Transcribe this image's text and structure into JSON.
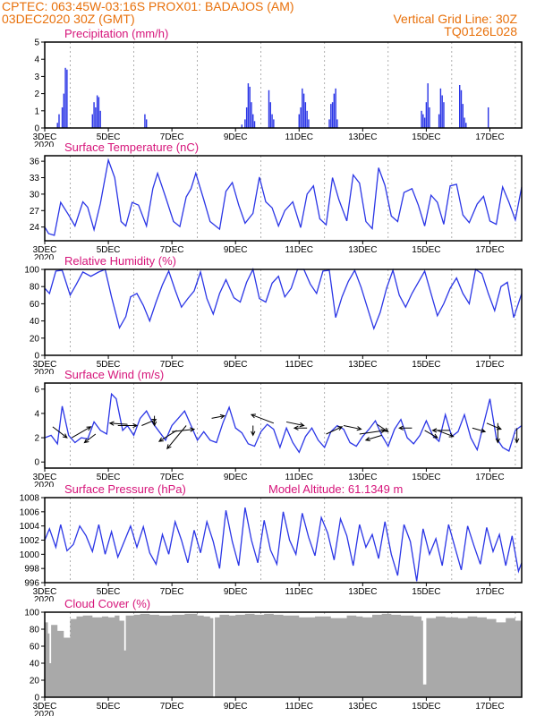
{
  "header": {
    "line1": "CPTEC:   063:45W-03:16S   PROX01: BADAJOS (AM)",
    "line2_left": "03DEC2020 30Z (GMT)",
    "line2_right": "Vertical Grid Line: 30Z",
    "line3_right": "TQ0126L028"
  },
  "x_axis": {
    "tick_labels": [
      "3DEC",
      "5DEC",
      "7DEC",
      "9DEC",
      "11DEC",
      "13DEC",
      "15DEC",
      "17DEC"
    ],
    "start_label_extra": "2020"
  },
  "colors": {
    "series": "#2b36e6",
    "title": "#d6147a",
    "header": "#e8700a",
    "cloud": "#a9a9a9"
  },
  "chart_data": [
    {
      "type": "bar",
      "title": "Precipitation (mm/h)",
      "ylim": [
        0,
        5
      ],
      "yticks": [
        0,
        1,
        2,
        3,
        4,
        5
      ],
      "xlim": [
        0,
        15
      ],
      "x": [
        0.4,
        0.45,
        0.55,
        0.6,
        0.65,
        0.7,
        1.5,
        1.55,
        1.6,
        1.65,
        1.7,
        1.75,
        3.15,
        3.2,
        6.2,
        6.3,
        6.35,
        6.4,
        6.45,
        6.5,
        6.55,
        6.6,
        7.05,
        7.1,
        7.15,
        7.2,
        8.0,
        8.05,
        8.1,
        8.15,
        8.2,
        8.25,
        8.3,
        8.95,
        9.0,
        9.05,
        9.1,
        9.15,
        9.2,
        11.85,
        11.9,
        11.95,
        12.0,
        12.05,
        12.1,
        12.4,
        12.45,
        12.5,
        12.55,
        13.05,
        13.1,
        13.15,
        13.2,
        13.25,
        13.95
      ],
      "values": [
        0.3,
        0.8,
        1.2,
        2.0,
        3.5,
        3.4,
        0.8,
        1.5,
        1.2,
        1.9,
        1.8,
        1.0,
        0.8,
        0.5,
        0.2,
        0.5,
        1.2,
        2.6,
        2.4,
        1.5,
        0.8,
        0.4,
        2.2,
        1.5,
        0.8,
        0.5,
        0.8,
        1.2,
        2.3,
        2.0,
        1.5,
        1.0,
        0.5,
        0.5,
        1.4,
        1.5,
        2.0,
        2.3,
        0.5,
        1.0,
        0.8,
        0.6,
        1.5,
        2.6,
        1.2,
        0.8,
        2.3,
        1.9,
        1.5,
        2.5,
        2.2,
        1.4,
        0.6,
        0.3,
        1.2
      ]
    },
    {
      "type": "line",
      "title": "Surface Temperature (nC)",
      "ylim": [
        21.5,
        37
      ],
      "yticks": [
        21,
        24,
        27,
        30,
        33,
        36
      ],
      "xlim": [
        0,
        15
      ],
      "x": [
        0,
        0.12,
        0.3,
        0.5,
        0.75,
        0.95,
        1.2,
        1.35,
        1.55,
        1.75,
        2.0,
        2.2,
        2.4,
        2.55,
        2.75,
        2.95,
        3.2,
        3.4,
        3.55,
        3.8,
        4.05,
        4.25,
        4.45,
        4.6,
        4.75,
        5.0,
        5.2,
        5.5,
        5.7,
        5.9,
        6.1,
        6.3,
        6.55,
        6.75,
        6.95,
        7.15,
        7.35,
        7.55,
        7.8,
        8.05,
        8.25,
        8.45,
        8.65,
        8.85,
        9.05,
        9.25,
        9.5,
        9.7,
        9.9,
        10.1,
        10.3,
        10.5,
        10.7,
        10.9,
        11.1,
        11.3,
        11.55,
        11.75,
        11.95,
        12.15,
        12.35,
        12.55,
        12.75,
        12.95,
        13.15,
        13.35,
        13.6,
        13.8,
        14.0,
        14.2,
        14.4,
        14.6,
        14.8,
        15.0
      ],
      "values": [
        24.0,
        22.8,
        22.5,
        28.5,
        26.2,
        24.2,
        28.6,
        27.6,
        23.5,
        28.3,
        36.2,
        33.0,
        25.0,
        24.2,
        28.5,
        28.0,
        24.2,
        31.0,
        33.8,
        29.5,
        25.0,
        24.1,
        29.5,
        31.0,
        33.8,
        29.0,
        25.0,
        23.6,
        30.5,
        32.1,
        28.0,
        24.7,
        26.5,
        33.1,
        28.6,
        27.5,
        24.2,
        27.0,
        28.6,
        23.9,
        30.0,
        31.5,
        25.5,
        24.4,
        33.0,
        29.0,
        25.1,
        33.5,
        32.0,
        25.0,
        23.7,
        34.8,
        31.6,
        26.0,
        25.0,
        30.3,
        31.0,
        28.0,
        24.2,
        29.8,
        28.5,
        24.5,
        31.5,
        31.8,
        26.2,
        24.8,
        28.2,
        29.6,
        25.1,
        24.5,
        31.3,
        28.5,
        25.3,
        31.3
      ]
    },
    {
      "type": "line",
      "title": "Relative Humidity (%)",
      "ylim": [
        0,
        100
      ],
      "yticks": [
        0,
        20,
        40,
        60,
        80,
        100
      ],
      "xlim": [
        0,
        15
      ],
      "x": [
        0,
        0.15,
        0.35,
        0.55,
        0.8,
        1.0,
        1.2,
        1.45,
        1.7,
        1.9,
        2.1,
        2.35,
        2.55,
        2.7,
        2.9,
        3.1,
        3.3,
        3.5,
        3.7,
        3.9,
        4.1,
        4.3,
        4.5,
        4.7,
        4.9,
        5.1,
        5.3,
        5.5,
        5.7,
        5.95,
        6.15,
        6.35,
        6.55,
        6.75,
        6.95,
        7.15,
        7.35,
        7.55,
        7.75,
        7.95,
        8.15,
        8.35,
        8.55,
        8.75,
        8.95,
        9.15,
        9.35,
        9.55,
        9.75,
        9.95,
        10.15,
        10.35,
        10.55,
        10.75,
        10.95,
        11.15,
        11.35,
        11.55,
        11.75,
        11.95,
        12.15,
        12.35,
        12.55,
        12.75,
        12.95,
        13.15,
        13.35,
        13.55,
        13.75,
        13.95,
        14.15,
        14.35,
        14.55,
        14.75,
        15.0
      ],
      "values": [
        78,
        72,
        98,
        99,
        70,
        83,
        97,
        92,
        97,
        100,
        68,
        32,
        45,
        68,
        72,
        58,
        40,
        62,
        82,
        98,
        76,
        56,
        66,
        75,
        97,
        66,
        48,
        72,
        88,
        67,
        62,
        85,
        100,
        66,
        62,
        84,
        92,
        68,
        78,
        100,
        100,
        83,
        72,
        98,
        99,
        44,
        68,
        86,
        99,
        79,
        55,
        31,
        50,
        78,
        99,
        70,
        56,
        72,
        85,
        98,
        72,
        46,
        60,
        78,
        90,
        72,
        60,
        100,
        95,
        72,
        52,
        80,
        85,
        44,
        72
      ]
    },
    {
      "type": "line",
      "title": "Surface Wind (m/s)",
      "ylim": [
        -0.5,
        6.5
      ],
      "yticks": [
        0,
        2,
        4,
        6
      ],
      "xlim": [
        0,
        15
      ],
      "x": [
        0,
        0.2,
        0.4,
        0.55,
        0.75,
        0.95,
        1.15,
        1.35,
        1.55,
        1.75,
        1.95,
        2.1,
        2.25,
        2.45,
        2.6,
        2.8,
        3.0,
        3.2,
        3.4,
        3.6,
        3.8,
        4.0,
        4.2,
        4.4,
        4.6,
        4.8,
        5.0,
        5.2,
        5.4,
        5.6,
        5.8,
        6.0,
        6.2,
        6.4,
        6.6,
        6.8,
        7.0,
        7.2,
        7.4,
        7.6,
        7.8,
        8.0,
        8.2,
        8.4,
        8.6,
        8.8,
        9.0,
        9.2,
        9.4,
        9.6,
        9.8,
        10.0,
        10.2,
        10.4,
        10.6,
        10.8,
        11.0,
        11.2,
        11.4,
        11.6,
        11.8,
        12.0,
        12.2,
        12.4,
        12.6,
        12.8,
        13.0,
        13.2,
        13.4,
        13.6,
        13.8,
        14.0,
        14.2,
        14.4,
        14.6,
        14.8,
        15.0
      ],
      "values": [
        2.0,
        2.2,
        1.5,
        4.6,
        2.2,
        1.6,
        2.0,
        1.9,
        3.3,
        2.6,
        2.3,
        5.6,
        5.2,
        2.6,
        3.0,
        2.2,
        3.6,
        4.2,
        3.2,
        2.5,
        1.8,
        3.0,
        3.6,
        4.2,
        3.0,
        1.8,
        2.5,
        1.8,
        1.6,
        3.2,
        4.5,
        2.8,
        2.4,
        1.5,
        1.3,
        2.5,
        3.1,
        2.7,
        1.2,
        2.8,
        1.6,
        0.8,
        2.1,
        2.8,
        1.8,
        1.2,
        2.5,
        3.0,
        2.7,
        1.6,
        1.3,
        2.1,
        2.7,
        3.4,
        2.2,
        1.3,
        2.7,
        3.5,
        2.0,
        1.5,
        2.2,
        3.4,
        2.2,
        1.7,
        3.9,
        2.1,
        2.5,
        3.9,
        2.0,
        1.0,
        3.1,
        5.2,
        2.0,
        1.2,
        0.9,
        2.6,
        3.0
      ],
      "vectors": [
        {
          "x": 0.25,
          "y": 2.9,
          "dx": 0.45,
          "dy": -0.9
        },
        {
          "x": 0.85,
          "y": 2.0,
          "dx": 0.6,
          "dy": 0.9
        },
        {
          "x": 1.6,
          "y": 2.3,
          "dx": -0.35,
          "dy": -0.7
        },
        {
          "x": 2.3,
          "y": 3.0,
          "dx": 0.6,
          "dy": 0.0
        },
        {
          "x": 2.6,
          "y": 3.1,
          "dx": -0.55,
          "dy": 0.1
        },
        {
          "x": 3.05,
          "y": 3.0,
          "dx": 0.45,
          "dy": 0.5
        },
        {
          "x": 3.45,
          "y": 3.8,
          "dx": 0.0,
          "dy": -0.8
        },
        {
          "x": 4.0,
          "y": 2.5,
          "dx": 0.7,
          "dy": 0.2
        },
        {
          "x": 4.15,
          "y": 2.6,
          "dx": -0.55,
          "dy": -0.9
        },
        {
          "x": 4.45,
          "y": 3.0,
          "dx": -0.6,
          "dy": -1.9
        },
        {
          "x": 5.25,
          "y": 3.6,
          "dx": 0.4,
          "dy": 0.2
        },
        {
          "x": 6.55,
          "y": 3.0,
          "dx": 0.0,
          "dy": -0.8
        },
        {
          "x": 7.2,
          "y": 3.2,
          "dx": -0.7,
          "dy": 0.7
        },
        {
          "x": 7.6,
          "y": 3.3,
          "dx": 0.55,
          "dy": -0.3
        },
        {
          "x": 8.25,
          "y": 2.8,
          "dx": -0.4,
          "dy": 0.0
        },
        {
          "x": 8.85,
          "y": 2.3,
          "dx": 0.5,
          "dy": 0.6
        },
        {
          "x": 9.4,
          "y": 3.0,
          "dx": 0.55,
          "dy": -0.3
        },
        {
          "x": 9.9,
          "y": 2.3,
          "dx": 0.8,
          "dy": 0.3
        },
        {
          "x": 10.45,
          "y": 3.1,
          "dx": 0.35,
          "dy": -0.6
        },
        {
          "x": 10.6,
          "y": 2.2,
          "dx": -0.5,
          "dy": -0.4
        },
        {
          "x": 11.55,
          "y": 2.8,
          "dx": -0.4,
          "dy": 0.0
        },
        {
          "x": 11.95,
          "y": 2.6,
          "dx": 0.4,
          "dy": -0.6
        },
        {
          "x": 12.35,
          "y": 2.6,
          "dx": 0.5,
          "dy": -0.5
        },
        {
          "x": 12.75,
          "y": 2.6,
          "dx": -0.55,
          "dy": 0.0
        },
        {
          "x": 13.45,
          "y": 2.8,
          "dx": 0.4,
          "dy": -0.3
        },
        {
          "x": 13.9,
          "y": 3.2,
          "dx": 0.45,
          "dy": -0.5
        },
        {
          "x": 14.25,
          "y": 3.2,
          "dx": 0.0,
          "dy": -1.6
        },
        {
          "x": 14.85,
          "y": 2.8,
          "dx": 0.0,
          "dy": -1.2
        }
      ]
    },
    {
      "type": "line",
      "title": "Surface Pressure (hPa)",
      "annotation": "Model Altitude: 61.1349 m",
      "ylim": [
        996,
        1008
      ],
      "yticks": [
        996,
        998,
        1000,
        1002,
        1004,
        1006,
        1008
      ],
      "xlim": [
        0,
        15
      ],
      "x": [
        0,
        0.15,
        0.35,
        0.5,
        0.7,
        0.9,
        1.1,
        1.3,
        1.5,
        1.7,
        1.9,
        2.1,
        2.3,
        2.5,
        2.7,
        2.9,
        3.1,
        3.3,
        3.5,
        3.7,
        3.9,
        4.1,
        4.3,
        4.5,
        4.7,
        4.9,
        5.1,
        5.3,
        5.5,
        5.7,
        5.9,
        6.1,
        6.3,
        6.5,
        6.7,
        6.9,
        7.1,
        7.3,
        7.5,
        7.7,
        7.9,
        8.1,
        8.3,
        8.5,
        8.7,
        8.9,
        9.1,
        9.3,
        9.5,
        9.7,
        9.9,
        10.1,
        10.3,
        10.5,
        10.7,
        10.9,
        11.1,
        11.3,
        11.5,
        11.7,
        11.9,
        12.1,
        12.3,
        12.5,
        12.7,
        12.9,
        13.1,
        13.3,
        13.5,
        13.7,
        13.9,
        14.1,
        14.3,
        14.5,
        14.7,
        14.9,
        15.0
      ],
      "values": [
        1002.0,
        1003.6,
        1001.0,
        1004.2,
        1000.5,
        1001.4,
        1004.0,
        1002.6,
        1000.4,
        1004.2,
        1000.0,
        1003.2,
        999.6,
        1001.8,
        1004.0,
        1001.0,
        1003.9,
        1000.2,
        998.6,
        1002.8,
        1000.0,
        1004.6,
        1002.0,
        998.8,
        1003.4,
        1000.2,
        1004.6,
        1001.8,
        998.0,
        1006.2,
        1001.8,
        998.4,
        1006.6,
        1002.0,
        998.8,
        1004.8,
        1000.6,
        998.6,
        1006.0,
        1002.0,
        1000.0,
        1005.8,
        1002.4,
        999.8,
        1005.2,
        1003.0,
        999.2,
        1005.0,
        1002.6,
        998.4,
        1004.2,
        1001.0,
        1002.8,
        999.4,
        1004.6,
        1000.0,
        997.0,
        1004.2,
        1001.8,
        996.2,
        1003.6,
        1000.0,
        1002.2,
        998.4,
        1004.2,
        1001.0,
        997.8,
        1004.0,
        1001.2,
        998.6,
        1003.8,
        1000.4,
        1002.8,
        998.4,
        1002.6,
        997.6,
        998.8
      ]
    },
    {
      "type": "area",
      "title": "Cloud Cover (%)",
      "ylim": [
        0,
        100
      ],
      "yticks": [
        0,
        20,
        40,
        60,
        80,
        100
      ],
      "xlim": [
        0,
        15
      ],
      "x": [
        0,
        0.1,
        0.15,
        0.2,
        0.4,
        0.6,
        0.8,
        1.0,
        1.2,
        1.5,
        1.8,
        2.0,
        2.2,
        2.35,
        2.5,
        2.55,
        2.8,
        3.0,
        3.3,
        3.6,
        4.0,
        4.4,
        4.8,
        5.0,
        5.2,
        5.3,
        5.35,
        5.5,
        5.8,
        6.0,
        6.3,
        6.6,
        6.9,
        7.2,
        7.5,
        8.0,
        8.5,
        9.0,
        9.5,
        9.8,
        10.0,
        10.3,
        10.6,
        10.9,
        11.2,
        11.6,
        11.85,
        11.9,
        12.0,
        12.3,
        12.6,
        13.0,
        13.3,
        13.6,
        13.9,
        14.2,
        14.5,
        14.8,
        15.0
      ],
      "values": [
        88,
        75,
        40,
        85,
        78,
        70,
        92,
        95,
        96,
        94,
        95,
        94,
        96,
        90,
        55,
        96,
        97,
        98,
        97,
        96,
        97,
        98,
        96,
        95,
        93,
        0,
        94,
        97,
        96,
        97,
        98,
        97,
        98,
        97,
        96,
        94,
        95,
        93,
        96,
        95,
        94,
        97,
        98,
        97,
        96,
        95,
        90,
        15,
        93,
        95,
        94,
        93,
        95,
        94,
        92,
        88,
        93,
        90,
        88
      ]
    }
  ]
}
